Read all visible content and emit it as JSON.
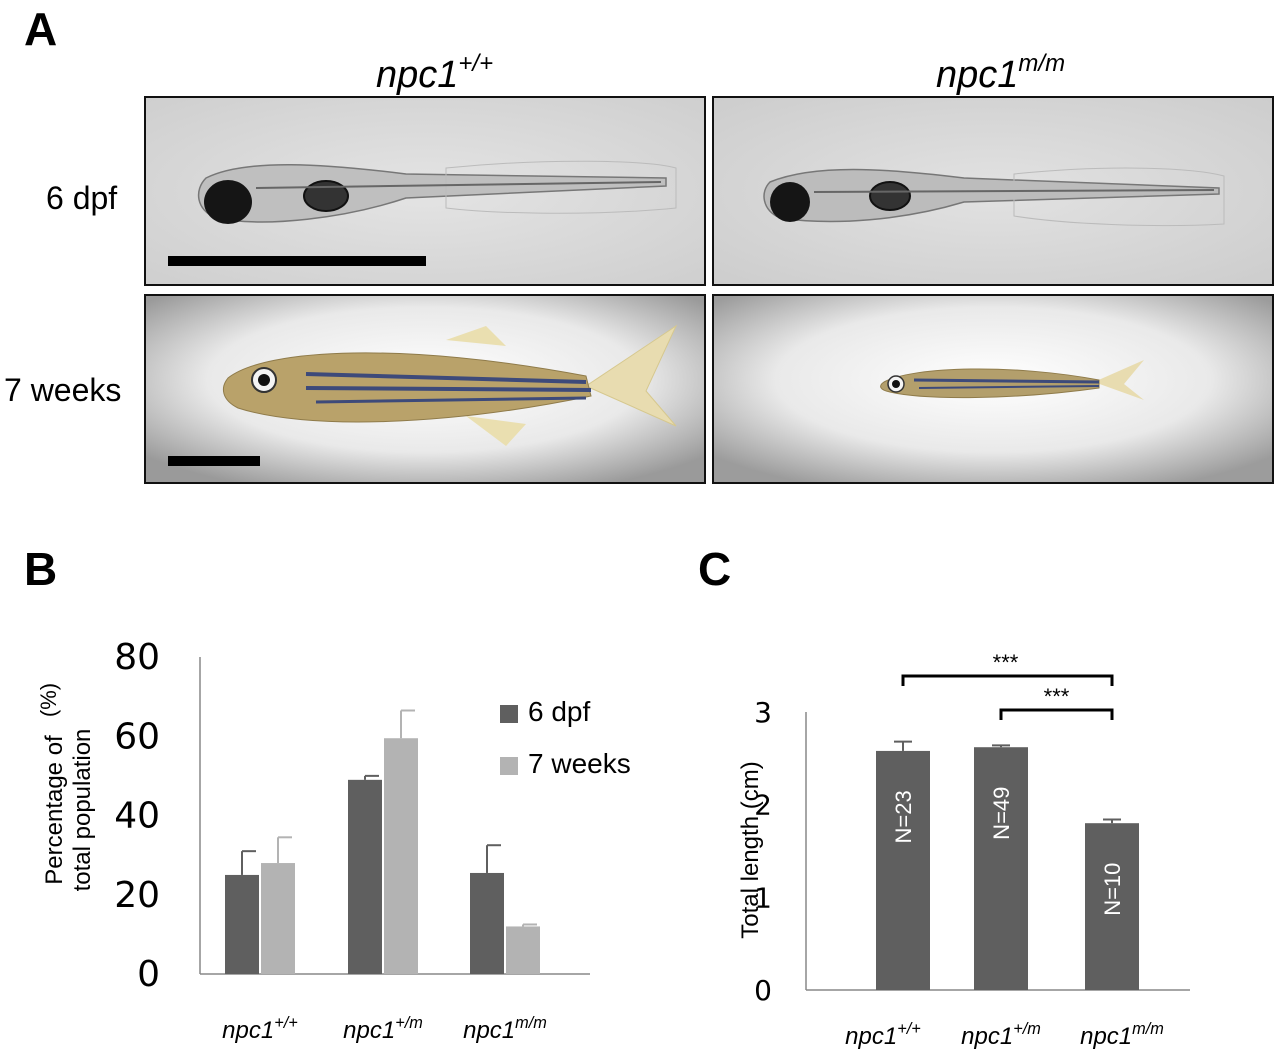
{
  "panel_a": {
    "letter": "A",
    "genotypes": [
      {
        "base": "npc1",
        "sup": "+/+"
      },
      {
        "base": "npc1",
        "sup": "m/m"
      }
    ],
    "rows": [
      "6 dpf",
      "7 weeks"
    ]
  },
  "panel_b": {
    "letter": "B"
  },
  "panel_c": {
    "letter": "C"
  },
  "colors": {
    "dark_bar": "#5f5f5f",
    "light_bar": "#b3b3b3",
    "axis": "#888888"
  },
  "chart_data": [
    {
      "id": "B",
      "type": "bar",
      "ylabel_line1": "Percentage of",
      "ylabel_line2": "total population",
      "ylabel_unit": "(%)",
      "ylim": [
        0,
        80
      ],
      "yticks": [
        0,
        20,
        40,
        60,
        80
      ],
      "categories": [
        {
          "base": "npc1",
          "sup": "+/+"
        },
        {
          "base": "npc1",
          "sup": "+/m"
        },
        {
          "base": "npc1",
          "sup": "m/m"
        }
      ],
      "legend_position": "top-right",
      "series": [
        {
          "name": "6 dpf",
          "color": "#5f5f5f",
          "values": [
            25,
            49,
            25.5
          ],
          "errors": [
            6,
            1,
            7
          ]
        },
        {
          "name": "7 weeks",
          "color": "#b3b3b3",
          "values": [
            28,
            59.5,
            12
          ],
          "errors": [
            6.5,
            7,
            0.5
          ]
        }
      ]
    },
    {
      "id": "C",
      "type": "bar",
      "ylabel": "Total length (cm)",
      "ylim": [
        0,
        3
      ],
      "yticks": [
        0,
        1,
        2,
        3
      ],
      "categories": [
        {
          "base": "npc1",
          "sup": "+/+"
        },
        {
          "base": "npc1",
          "sup": "+/m"
        },
        {
          "base": "npc1",
          "sup": "m/m"
        }
      ],
      "values": [
        2.58,
        2.62,
        1.8
      ],
      "errors": [
        0.1,
        0.02,
        0.04
      ],
      "bar_labels": [
        "N=23",
        "N=49",
        "N=10"
      ],
      "color": "#5f5f5f",
      "significance": [
        {
          "from": 0,
          "to": 2,
          "label": "***"
        },
        {
          "from": 1,
          "to": 2,
          "label": "***"
        }
      ]
    }
  ]
}
